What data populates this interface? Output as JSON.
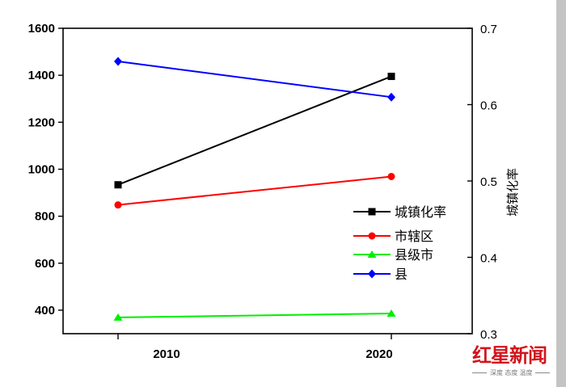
{
  "chart_data": {
    "type": "line",
    "title": "",
    "xlabel": "",
    "ylabel": "",
    "ylabel_right": "城镇化率",
    "categories": [
      "2010",
      "2020"
    ],
    "y_left": {
      "range": [
        300,
        1600
      ],
      "ticks": [
        400,
        600,
        800,
        1000,
        1200,
        1400,
        1600
      ]
    },
    "y_right": {
      "range": [
        0.3,
        0.7
      ],
      "ticks": [
        0.3,
        0.4,
        0.5,
        0.6,
        0.7
      ]
    },
    "grid": false,
    "legend_position": "inside-right",
    "series": [
      {
        "name": "城镇化率",
        "axis": "right",
        "color": "#000000",
        "marker": "square",
        "values": [
          0.495,
          0.637
        ]
      },
      {
        "name": "市辖区",
        "axis": "left",
        "color": "#ff0000",
        "marker": "circle",
        "values": [
          848,
          969
        ]
      },
      {
        "name": "县级市",
        "axis": "left",
        "color": "#00ee00",
        "marker": "triangle",
        "values": [
          369,
          386
        ]
      },
      {
        "name": "县",
        "axis": "left",
        "color": "#0000ff",
        "marker": "diamond",
        "values": [
          1459,
          1307
        ]
      }
    ]
  },
  "legend": {
    "items": [
      {
        "label": "城镇化率"
      },
      {
        "label": "市辖区"
      },
      {
        "label": "县级市"
      },
      {
        "label": "县"
      }
    ]
  },
  "watermark": {
    "title": "红星新闻",
    "subtitle": "深度 态度 温度"
  }
}
